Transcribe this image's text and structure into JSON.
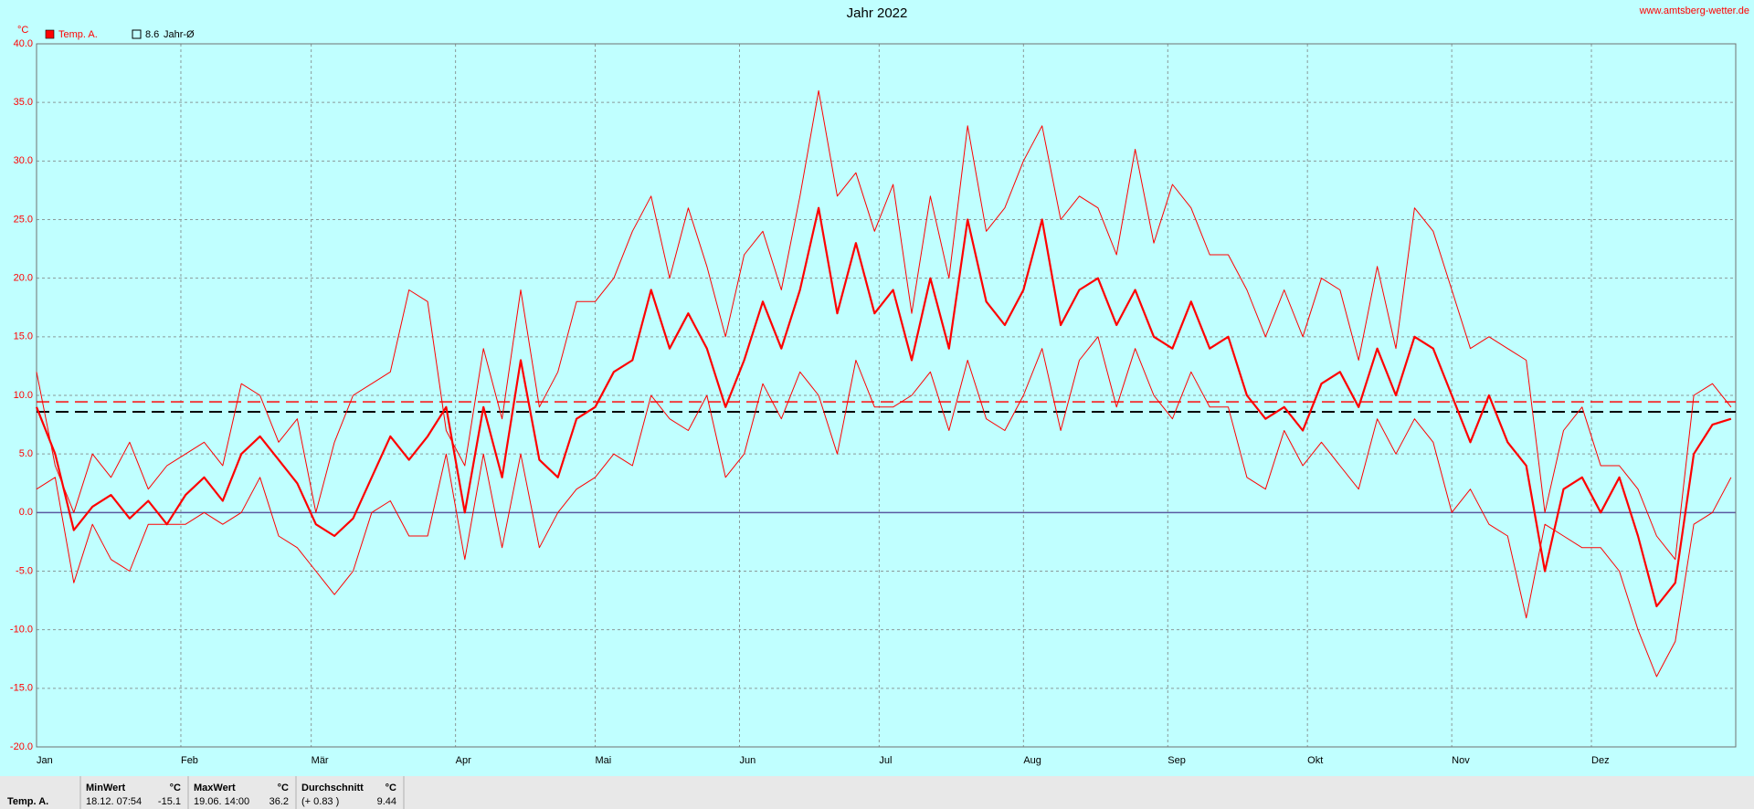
{
  "chart_data": {
    "type": "line",
    "title": "Jahr 2022",
    "unit_label": "°C",
    "source": "www.amtsberg-wetter.de",
    "x": [
      1,
      5,
      9,
      13,
      17,
      21,
      25,
      29,
      33,
      37,
      41,
      45,
      49,
      53,
      57,
      61,
      65,
      69,
      73,
      77,
      81,
      85,
      89,
      93,
      97,
      101,
      105,
      109,
      113,
      117,
      121,
      125,
      129,
      133,
      137,
      141,
      145,
      149,
      153,
      157,
      161,
      165,
      169,
      173,
      177,
      181,
      185,
      189,
      193,
      197,
      201,
      205,
      209,
      213,
      217,
      221,
      225,
      229,
      233,
      237,
      241,
      245,
      249,
      253,
      257,
      261,
      265,
      269,
      273,
      277,
      281,
      285,
      289,
      293,
      297,
      301,
      305,
      309,
      313,
      317,
      321,
      325,
      329,
      333,
      337,
      341,
      345,
      349,
      353,
      357,
      361,
      365
    ],
    "xlim": [
      1,
      366
    ],
    "xticks": [
      {
        "value": 1,
        "label": "Jan"
      },
      {
        "value": 32,
        "label": "Feb"
      },
      {
        "value": 60,
        "label": "Mär"
      },
      {
        "value": 91,
        "label": "Apr"
      },
      {
        "value": 121,
        "label": "Mai"
      },
      {
        "value": 152,
        "label": "Jun"
      },
      {
        "value": 182,
        "label": "Jul"
      },
      {
        "value": 213,
        "label": "Aug"
      },
      {
        "value": 244,
        "label": "Sep"
      },
      {
        "value": 274,
        "label": "Okt"
      },
      {
        "value": 305,
        "label": "Nov"
      },
      {
        "value": 335,
        "label": "Dez"
      }
    ],
    "ylim": [
      -20,
      40
    ],
    "yticks": [
      {
        "value": 40,
        "label": "40.0"
      },
      {
        "value": 35,
        "label": "35.0"
      },
      {
        "value": 30,
        "label": "30.0"
      },
      {
        "value": 25,
        "label": "25.0"
      },
      {
        "value": 20,
        "label": "20.0"
      },
      {
        "value": 15,
        "label": "15.0"
      },
      {
        "value": 10,
        "label": "10.0"
      },
      {
        "value": 5,
        "label": "5.0"
      },
      {
        "value": 0,
        "label": "0.0"
      },
      {
        "value": -5,
        "label": "-5.0"
      },
      {
        "value": -10,
        "label": "-10.0"
      },
      {
        "value": -15,
        "label": "-15.0"
      },
      {
        "value": -20,
        "label": "-20.0"
      }
    ],
    "grid": true,
    "series": [
      {
        "name": "Temp. A.",
        "color": "#ff0000",
        "values": [
          9,
          5,
          -1.5,
          0.5,
          1.5,
          -0.5,
          1,
          -1,
          1.5,
          3,
          1,
          5,
          6.5,
          4.5,
          2.5,
          -1,
          -2,
          -0.5,
          3,
          6.5,
          4.5,
          6.5,
          9,
          0,
          9,
          3,
          13,
          4.5,
          3,
          8,
          9,
          12,
          13,
          19,
          14,
          17,
          14,
          9,
          13,
          18,
          14,
          19,
          26,
          17,
          23,
          17,
          19,
          13,
          20,
          14,
          25,
          18,
          16,
          19,
          25,
          16,
          19,
          20,
          16,
          19,
          15,
          14,
          18,
          14,
          15,
          10,
          8,
          9,
          7,
          11,
          12,
          9,
          14,
          10,
          15,
          14,
          10,
          6,
          10,
          6,
          4,
          -5,
          2,
          3,
          0,
          3,
          -2,
          -8,
          -6,
          5,
          7.5,
          8
        ]
      },
      {
        "color": "#ff0000",
        "values": [
          12,
          4,
          0,
          5,
          3,
          6,
          2,
          4,
          5,
          6,
          4,
          11,
          10,
          6,
          8,
          0,
          6,
          10,
          11,
          12,
          19,
          18,
          7,
          4,
          14,
          8,
          19,
          9,
          12,
          18,
          18,
          20,
          24,
          27,
          20,
          26,
          21,
          15,
          22,
          24,
          19,
          27,
          36,
          27,
          29,
          24,
          28,
          17,
          27,
          20,
          33,
          24,
          26,
          30,
          33,
          25,
          27,
          26,
          22,
          31,
          23,
          28,
          26,
          22,
          22,
          19,
          15,
          19,
          15,
          20,
          19,
          13,
          21,
          14,
          26,
          24,
          19,
          14,
          15,
          14,
          13,
          0,
          7,
          9,
          4,
          4,
          2,
          -2,
          -4,
          10,
          11,
          9
        ]
      },
      {
        "color": "#ff0000",
        "values": [
          2,
          3,
          -6,
          -1,
          -4,
          -5,
          -1,
          -1,
          -1,
          0,
          -1,
          0,
          3,
          -2,
          -3,
          -5,
          -7,
          -5,
          0,
          1,
          -2,
          -2,
          5,
          -4,
          5,
          -3,
          5,
          -3,
          0,
          2,
          3,
          5,
          4,
          10,
          8,
          7,
          10,
          3,
          5,
          11,
          8,
          12,
          10,
          5,
          13,
          9,
          9,
          10,
          12,
          7,
          13,
          8,
          7,
          10,
          14,
          7,
          13,
          15,
          9,
          14,
          10,
          8,
          12,
          9,
          9,
          3,
          2,
          7,
          4,
          6,
          4,
          2,
          8,
          5,
          8,
          6,
          0,
          2,
          -1,
          -2,
          -9,
          -1,
          -2,
          -3,
          -3,
          -5,
          -10,
          -14,
          -11,
          -1,
          0,
          3
        ]
      }
    ],
    "ref_line": {
      "value": 8.6,
      "label": "Jahr-Ø",
      "color": "#000000"
    },
    "mean_line_color": "#ff0000",
    "summary": {
      "row_label": "Temp. A.",
      "columns": [
        {
          "header": "MinWert",
          "unit": "°C",
          "time": "18.12.  07:54",
          "value": -15.1
        },
        {
          "header": "MaxWert",
          "unit": "°C",
          "time": "19.06.  14:00",
          "value": 36.2
        },
        {
          "header": "Durchschnitt",
          "unit": "°C",
          "time": "(+ 0.83 )",
          "value": 9.44
        }
      ]
    }
  }
}
